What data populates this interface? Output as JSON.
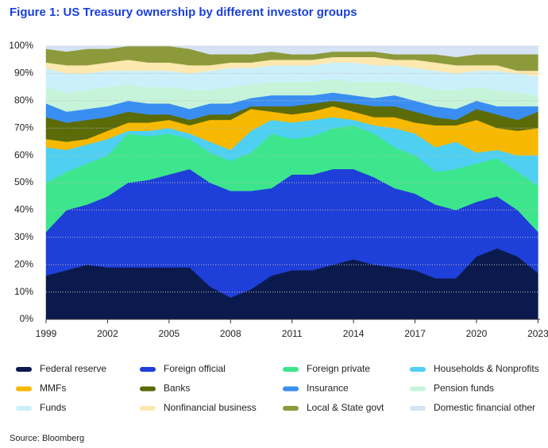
{
  "chart_data": {
    "type": "stacked_area",
    "title": "Figure 1: US Treasury ownership by different investor groups",
    "source": "Source: Bloomberg",
    "x": [
      1999,
      2000,
      2001,
      2002,
      2003,
      2004,
      2005,
      2006,
      2007,
      2008,
      2009,
      2010,
      2011,
      2012,
      2013,
      2014,
      2015,
      2016,
      2017,
      2018,
      2019,
      2020,
      2021,
      2022,
      2023
    ],
    "xlim": [
      1999,
      2023.1
    ],
    "xticks": [
      1999,
      2002,
      2005,
      2008,
      2011,
      2014,
      2017,
      2020,
      2023
    ],
    "ylim": [
      0,
      100
    ],
    "yticks": [
      {
        "value": 0,
        "label": "0%"
      },
      {
        "value": 10,
        "label": "10%"
      },
      {
        "value": 20,
        "label": "20%"
      },
      {
        "value": 30,
        "label": "30%"
      },
      {
        "value": 40,
        "label": "40%"
      },
      {
        "value": 50,
        "label": "50%"
      },
      {
        "value": 60,
        "label": "60%"
      },
      {
        "value": 70,
        "label": "70%"
      },
      {
        "value": 80,
        "label": "80%"
      },
      {
        "value": 90,
        "label": "90%"
      },
      {
        "value": 100,
        "label": "100%"
      }
    ],
    "grid": true,
    "series": [
      {
        "name": "Federal reserve",
        "color": "#0b1a4d",
        "values": [
          16,
          18,
          20,
          19,
          19,
          19,
          19,
          19,
          12,
          8,
          11,
          16,
          18,
          18,
          20,
          22,
          20,
          19,
          18,
          15,
          15,
          23,
          26,
          23,
          17
        ]
      },
      {
        "name": "Foreign official",
        "color": "#1e3fd8",
        "values": [
          16,
          22,
          22,
          26,
          31,
          32,
          34,
          36,
          38,
          39,
          36,
          32,
          35,
          35,
          35,
          33,
          32,
          29,
          28,
          27,
          25,
          20,
          19,
          17,
          15
        ]
      },
      {
        "name": "Foreign private",
        "color": "#3de68c",
        "values": [
          18,
          14,
          15,
          15,
          18,
          16,
          15,
          11,
          11,
          11,
          14,
          20,
          13,
          14,
          15,
          16,
          16,
          15,
          14,
          12,
          15,
          14,
          14,
          14,
          17
        ]
      },
      {
        "name": "Households & Nonprofits",
        "color": "#4fd0f2",
        "values": [
          13,
          8,
          7,
          6,
          1,
          2,
          2,
          2,
          4,
          4,
          8,
          5,
          6,
          6,
          4,
          2,
          3,
          7,
          8,
          9,
          10,
          4,
          3,
          6,
          11
        ]
      },
      {
        "name": "MMFs",
        "color": "#f7b900",
        "values": [
          3,
          3,
          2,
          3,
          3,
          3,
          3,
          3,
          8,
          11,
          8,
          3,
          3,
          3,
          4,
          3,
          3,
          4,
          4,
          8,
          6,
          12,
          8,
          9,
          10
        ]
      },
      {
        "name": "Banks",
        "color": "#5b6b08",
        "values": [
          8,
          7,
          7,
          5,
          4,
          3,
          2,
          2,
          2,
          2,
          1,
          2,
          3,
          3,
          2,
          3,
          4,
          4,
          4,
          3,
          2,
          4,
          5,
          4,
          6
        ]
      },
      {
        "name": "Insurance",
        "color": "#3a8ef2",
        "values": [
          5,
          4,
          4,
          4,
          4,
          4,
          4,
          4,
          4,
          4,
          3,
          4,
          4,
          3,
          3,
          3,
          3,
          4,
          4,
          4,
          4,
          3,
          3,
          5,
          2
        ]
      },
      {
        "name": "Pension funds",
        "color": "#c6f4da",
        "values": [
          6,
          7,
          7,
          7,
          6,
          6,
          6,
          7,
          5,
          6,
          5,
          5,
          5,
          5,
          5,
          5,
          6,
          5,
          6,
          6,
          7,
          5,
          6,
          5,
          4
        ]
      },
      {
        "name": "Funds",
        "color": "#ccf0fb",
        "values": [
          7,
          7,
          6,
          6,
          5,
          6,
          6,
          6,
          7,
          7,
          6,
          6,
          6,
          6,
          6,
          7,
          6,
          6,
          6,
          7,
          6,
          6,
          7,
          7,
          7
        ]
      },
      {
        "name": "Nonfinancial business",
        "color": "#fde8af",
        "values": [
          2,
          3,
          3,
          3,
          4,
          3,
          3,
          3,
          2,
          2,
          2,
          2,
          2,
          2,
          2,
          2,
          3,
          2,
          3,
          3,
          3,
          2,
          2,
          1,
          2
        ]
      },
      {
        "name": "Local & State govt",
        "color": "#8d9a3c",
        "values": [
          5,
          5,
          6,
          5,
          5,
          6,
          6,
          6,
          4,
          3,
          3,
          3,
          2,
          2,
          2,
          2,
          2,
          2,
          2,
          3,
          3,
          4,
          4,
          6,
          6
        ]
      },
      {
        "name": "Domestic financial other",
        "color": "#d5e3f5",
        "values": [
          1,
          2,
          1,
          1,
          0,
          0,
          0,
          1,
          3,
          3,
          3,
          2,
          3,
          3,
          2,
          2,
          2,
          3,
          3,
          3,
          4,
          3,
          3,
          3,
          3
        ]
      }
    ]
  }
}
